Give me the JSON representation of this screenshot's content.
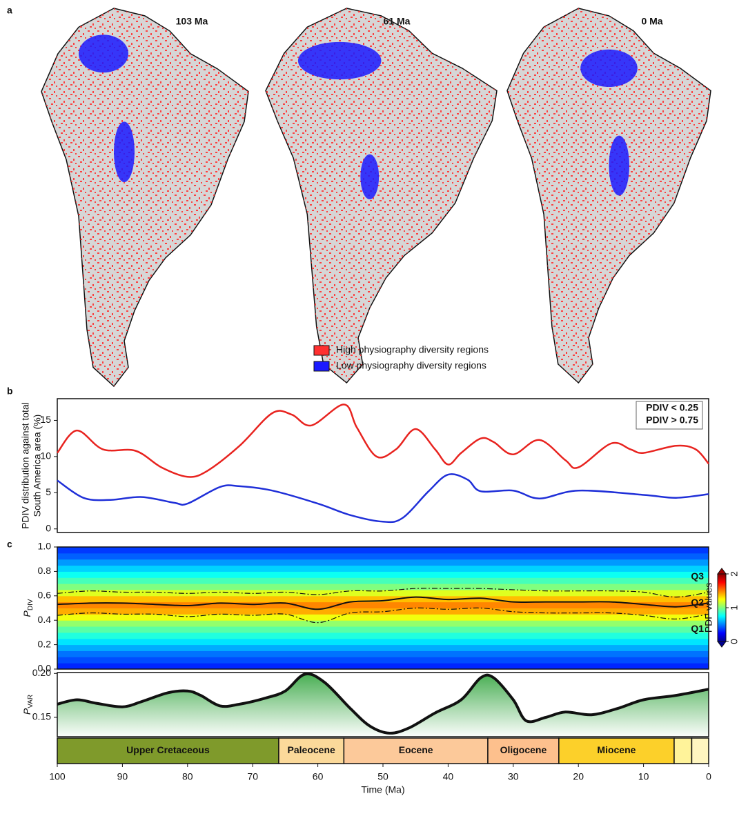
{
  "chart_data": [
    {
      "type": "map",
      "panel": "a",
      "maps": [
        "103 Ma",
        "61 Ma",
        "0 Ma"
      ],
      "legend": [
        {
          "name": "High physiography diversity regions",
          "color": "#ff3030"
        },
        {
          "name": "Low physiography diversity regions",
          "color": "#1a1aff"
        }
      ]
    },
    {
      "type": "line",
      "panel": "b",
      "ylabel_lines": [
        "PDIV distribution against total",
        "South America area (%)"
      ],
      "xlim": [
        100,
        0
      ],
      "ylim": [
        -0.5,
        18
      ],
      "yticks": [
        0,
        5,
        10,
        15
      ],
      "series": [
        {
          "name": "PDIV < 0.25",
          "color": "#1f2fd8",
          "x": [
            100,
            96,
            92,
            87,
            82,
            80,
            75,
            72,
            67,
            60,
            55,
            50,
            47,
            43,
            40,
            37,
            35,
            30,
            26,
            20,
            10,
            5,
            0
          ],
          "values": [
            6.7,
            4.3,
            4.0,
            4.4,
            3.6,
            3.5,
            5.8,
            5.9,
            5.3,
            3.5,
            1.9,
            1.0,
            1.5,
            5.2,
            7.5,
            6.8,
            5.2,
            5.3,
            4.2,
            5.3,
            4.7,
            4.3,
            4.8
          ]
        },
        {
          "name": "PDIV > 0.75",
          "color": "#e8231f",
          "x": [
            100,
            97,
            93,
            88,
            84,
            80,
            77,
            72,
            67,
            64,
            61,
            56,
            54,
            51,
            48,
            45,
            42,
            40,
            38,
            35,
            33,
            30,
            26,
            22,
            20,
            15,
            12,
            10,
            5,
            2,
            0
          ],
          "values": [
            10.5,
            13.6,
            11,
            10.8,
            8.5,
            7.2,
            8,
            11.5,
            16,
            15.8,
            14.3,
            17.2,
            14,
            10,
            11,
            13.8,
            11,
            8.9,
            10.5,
            12.5,
            12,
            10.3,
            12.3,
            9.5,
            8.5,
            11.8,
            11,
            10.5,
            11.5,
            11,
            9
          ]
        }
      ]
    },
    {
      "type": "heatmap",
      "panel": "c",
      "ylabel": {
        "symbol": "P",
        "subscript": "DIV"
      },
      "xlim": [
        100,
        0
      ],
      "ylim": [
        0,
        1
      ],
      "yticks": [
        {
          "value": 0,
          "label": "0.0"
        },
        0.2,
        0.4,
        0.6,
        0.8,
        {
          "value": 1,
          "label": "1.0"
        }
      ],
      "pdf_y": [
        0.025,
        0.075,
        0.125,
        0.175,
        0.225,
        0.275,
        0.325,
        0.375,
        0.425,
        0.475,
        0.525,
        0.575,
        0.625,
        0.675,
        0.725,
        0.775,
        0.825,
        0.875,
        0.925,
        0.975
      ],
      "pdf_values": [
        0.1,
        0.2,
        0.3,
        0.45,
        0.6,
        0.75,
        0.9,
        1.05,
        1.3,
        1.55,
        1.65,
        1.5,
        1.25,
        1.0,
        0.85,
        0.7,
        0.55,
        0.4,
        0.25,
        0.15
      ],
      "colorbar": {
        "label": "PDF values",
        "clim": [
          0,
          2
        ],
        "ticks": [
          0,
          1,
          2
        ]
      },
      "series": [
        {
          "name": "Q3",
          "dashed": true,
          "x": [
            100,
            95,
            90,
            85,
            80,
            75,
            70,
            65,
            60,
            55,
            50,
            45,
            40,
            35,
            30,
            25,
            20,
            15,
            10,
            5,
            0
          ],
          "values": [
            0.62,
            0.64,
            0.63,
            0.63,
            0.62,
            0.63,
            0.62,
            0.63,
            0.61,
            0.64,
            0.64,
            0.66,
            0.66,
            0.66,
            0.65,
            0.64,
            0.64,
            0.64,
            0.63,
            0.59,
            0.63
          ]
        },
        {
          "name": "Q2",
          "dashed": false,
          "x": [
            100,
            95,
            90,
            85,
            80,
            75,
            70,
            65,
            60,
            55,
            50,
            45,
            40,
            35,
            30,
            25,
            20,
            15,
            10,
            5,
            0
          ],
          "values": [
            0.53,
            0.54,
            0.54,
            0.53,
            0.52,
            0.54,
            0.53,
            0.54,
            0.49,
            0.55,
            0.56,
            0.59,
            0.57,
            0.58,
            0.55,
            0.55,
            0.55,
            0.55,
            0.53,
            0.51,
            0.54
          ]
        },
        {
          "name": "Q1",
          "dashed": true,
          "x": [
            100,
            95,
            90,
            85,
            80,
            75,
            70,
            65,
            60,
            55,
            50,
            45,
            40,
            35,
            30,
            25,
            20,
            15,
            10,
            5,
            0
          ],
          "values": [
            0.44,
            0.46,
            0.45,
            0.45,
            0.43,
            0.45,
            0.44,
            0.45,
            0.38,
            0.46,
            0.47,
            0.5,
            0.49,
            0.5,
            0.47,
            0.46,
            0.46,
            0.46,
            0.44,
            0.41,
            0.45
          ]
        }
      ]
    },
    {
      "type": "area",
      "ylabel": {
        "symbol": "P",
        "subscript": "VAR"
      },
      "xlabel": "Time (Ma)",
      "xlim": [
        100,
        0
      ],
      "xticks": [
        100,
        90,
        80,
        70,
        60,
        50,
        40,
        30,
        20,
        10,
        0
      ],
      "ylim": [
        0.128,
        0.201
      ],
      "yticks": [
        0.15,
        {
          "value": 0.2,
          "label": "0.20"
        }
      ],
      "color": "#4caf50",
      "x": [
        100,
        97,
        94,
        90,
        87,
        83,
        80,
        78,
        75,
        72,
        68,
        65,
        62,
        59,
        55,
        52,
        49,
        46,
        42,
        38,
        35,
        33,
        30,
        28,
        25,
        22,
        18,
        14,
        10,
        5,
        0
      ],
      "values": [
        0.165,
        0.17,
        0.166,
        0.162,
        0.168,
        0.178,
        0.18,
        0.175,
        0.163,
        0.165,
        0.172,
        0.18,
        0.199,
        0.19,
        0.16,
        0.14,
        0.132,
        0.138,
        0.155,
        0.17,
        0.195,
        0.195,
        0.17,
        0.146,
        0.15,
        0.156,
        0.153,
        0.16,
        0.17,
        0.175,
        0.182
      ],
      "epochs": [
        {
          "name": "Upper Cretaceous",
          "start": 100,
          "end": 66,
          "color": "#7f9a2b"
        },
        {
          "name": "Paleocene",
          "start": 66,
          "end": 56,
          "color": "#fbd99a"
        },
        {
          "name": "Eocene",
          "start": 56,
          "end": 33.9,
          "color": "#fcc99a"
        },
        {
          "name": "Oligocene",
          "start": 33.9,
          "end": 23,
          "color": "#fdc08d"
        },
        {
          "name": "Miocene",
          "start": 23,
          "end": 5.3,
          "color": "#fcd02a"
        },
        {
          "name": null,
          "start": 5.3,
          "end": 2.6,
          "color": "#fff39a"
        },
        {
          "name": null,
          "start": 2.6,
          "end": 0,
          "color": "#fff6c0"
        }
      ]
    }
  ]
}
